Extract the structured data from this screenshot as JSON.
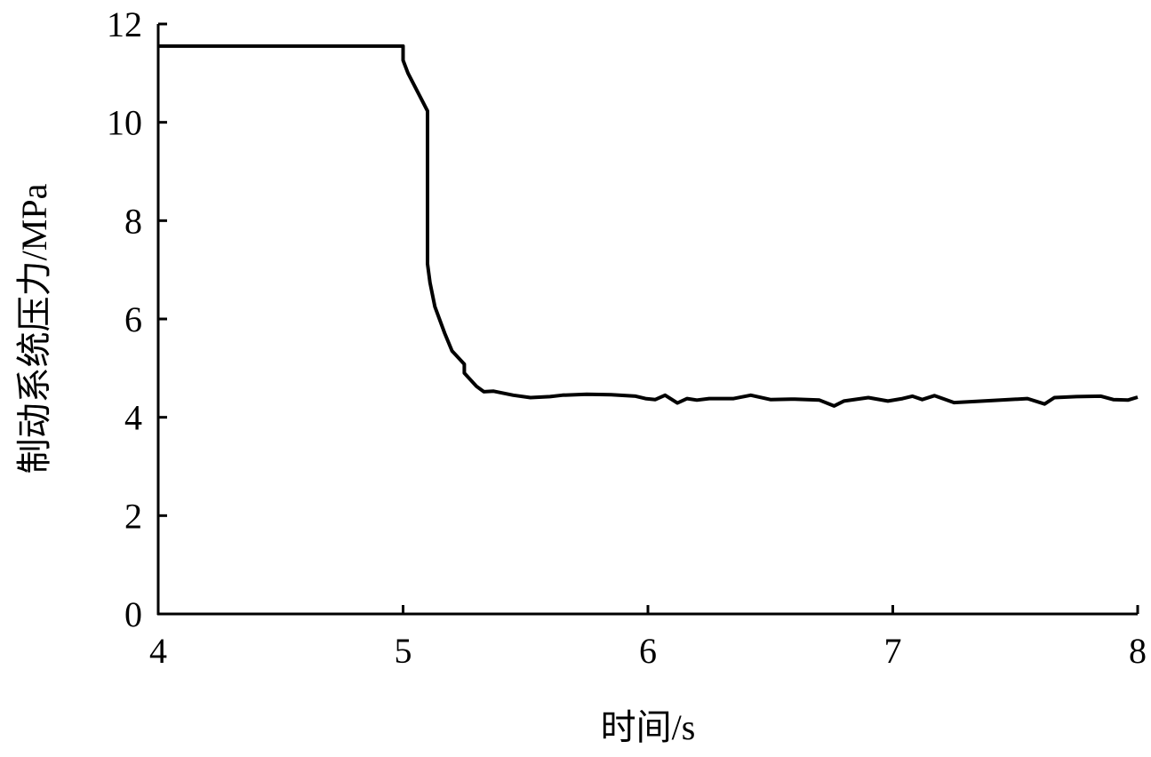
{
  "chart_data": {
    "type": "line",
    "title": "",
    "xlabel": "时间/s",
    "ylabel": "制动系统压力/MPa",
    "xlim": [
      4,
      8
    ],
    "ylim": [
      0,
      12
    ],
    "xticks": [
      4,
      5,
      6,
      7,
      8
    ],
    "yticks": [
      0,
      2,
      4,
      6,
      8,
      10,
      12
    ],
    "grid": false,
    "line_color": "#000000",
    "series": [
      {
        "x": [
          4.0,
          5.0,
          5.0,
          5.02,
          5.1,
          5.1,
          5.11,
          5.13,
          5.17,
          5.2,
          5.25,
          5.25,
          5.3,
          5.33,
          5.37,
          5.45,
          5.52,
          5.6,
          5.65,
          5.75,
          5.85,
          5.95,
          5.99,
          6.03,
          6.07,
          6.12,
          6.16,
          6.2,
          6.25,
          6.35,
          6.42,
          6.5,
          6.6,
          6.7,
          6.76,
          6.8,
          6.9,
          6.98,
          7.04,
          7.08,
          7.12,
          7.17,
          7.25,
          7.4,
          7.55,
          7.62,
          7.66,
          7.75,
          7.85,
          7.9,
          7.96,
          8.0
        ],
        "y": [
          11.55,
          11.55,
          11.26,
          11.0,
          10.23,
          7.12,
          6.74,
          6.25,
          5.71,
          5.35,
          5.08,
          4.9,
          4.63,
          4.52,
          4.53,
          4.45,
          4.4,
          4.42,
          4.45,
          4.47,
          4.46,
          4.43,
          4.38,
          4.36,
          4.45,
          4.29,
          4.38,
          4.35,
          4.38,
          4.38,
          4.45,
          4.36,
          4.37,
          4.35,
          4.23,
          4.33,
          4.4,
          4.33,
          4.38,
          4.43,
          4.36,
          4.44,
          4.3,
          4.34,
          4.38,
          4.27,
          4.4,
          4.42,
          4.43,
          4.36,
          4.35,
          4.41
        ]
      }
    ]
  }
}
